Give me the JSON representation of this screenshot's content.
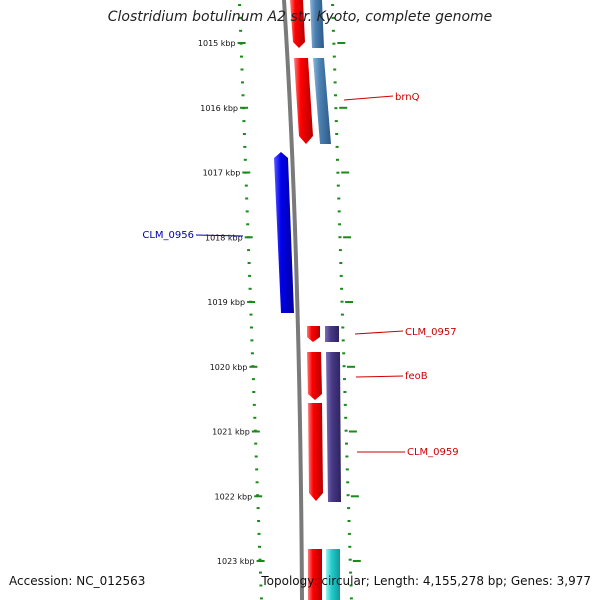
{
  "title": "Clostridium botulinum A2 str. Kyoto, complete genome",
  "accession_text": "Accession: NC_012563",
  "topology_text": "Topology: circular; Length: 4,155,278 bp; Genes: 3,977",
  "colors": {
    "backbone": "#7a7a7a",
    "tick": "#1a8a1a",
    "cds_forward": "#ff0000",
    "cds_reverse": "#0000ee",
    "cog_steelblue": "#4a7fb0",
    "cog_purple": "#483a84",
    "cog_cyan": "#22cccc",
    "feature_label_forward": "#cc0000",
    "feature_label_reverse": "#0000aa"
  },
  "kbp_ticks": [
    "1015 kbp",
    "1016 kbp",
    "1017 kbp",
    "1018 kbp",
    "1019 kbp",
    "1020 kbp",
    "1021 kbp",
    "1022 kbp",
    "1023 kbp"
  ],
  "features": [
    {
      "name": "brnQ",
      "strand": "forward"
    },
    {
      "name": "CLM_0956",
      "strand": "reverse"
    },
    {
      "name": "CLM_0957",
      "strand": "forward"
    },
    {
      "name": "feoB",
      "strand": "forward"
    },
    {
      "name": "CLM_0959",
      "strand": "forward"
    }
  ]
}
